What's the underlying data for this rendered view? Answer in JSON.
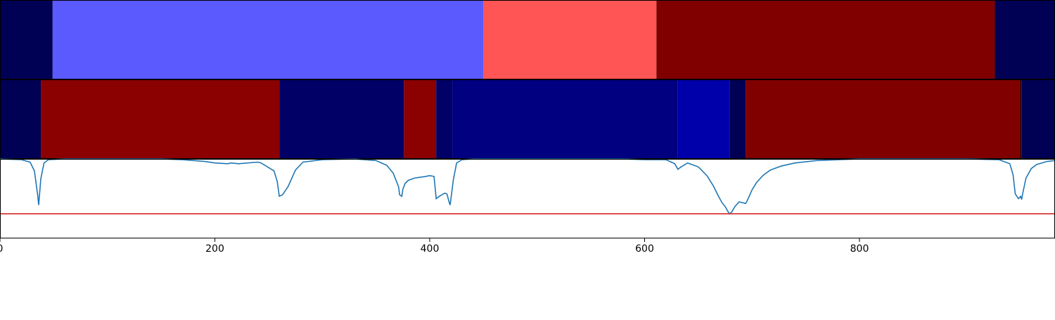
{
  "chart_data": [
    {
      "type": "heatmap",
      "xlim": [
        0,
        982
      ],
      "segments": [
        {
          "start": 0,
          "end": 49,
          "color": "#000055"
        },
        {
          "start": 49,
          "end": 450,
          "color": "#5a5aff"
        },
        {
          "start": 450,
          "end": 611,
          "color": "#ff5555"
        },
        {
          "start": 611,
          "end": 926,
          "color": "#800000"
        },
        {
          "start": 926,
          "end": 982,
          "color": "#000055"
        }
      ]
    },
    {
      "type": "heatmap",
      "xlim": [
        0,
        982
      ],
      "segments": [
        {
          "start": 0,
          "end": 38,
          "color": "#000055"
        },
        {
          "start": 38,
          "end": 260,
          "color": "#8b0000"
        },
        {
          "start": 260,
          "end": 376,
          "color": "#000066"
        },
        {
          "start": 376,
          "end": 406,
          "color": "#8b0000"
        },
        {
          "start": 406,
          "end": 421,
          "color": "#000066"
        },
        {
          "start": 421,
          "end": 631,
          "color": "#000080"
        },
        {
          "start": 631,
          "end": 679,
          "color": "#0000aa"
        },
        {
          "start": 679,
          "end": 694,
          "color": "#000055"
        },
        {
          "start": 694,
          "end": 949,
          "color": "#800000"
        },
        {
          "start": 949,
          "end": 951,
          "color": "#3a0000"
        },
        {
          "start": 951,
          "end": 982,
          "color": "#000055"
        }
      ]
    },
    {
      "type": "line",
      "xlim": [
        0,
        982
      ],
      "ylim": [
        0,
        1
      ],
      "xticks": [
        0,
        200,
        400,
        600,
        800
      ],
      "xtick_labels": [
        "0",
        "200",
        "400",
        "600",
        "800"
      ],
      "threshold": {
        "value": 0.31,
        "color": "#d62728"
      },
      "series": [
        {
          "color": "#1f77b4",
          "x": [
            0,
            20,
            28,
            32,
            35,
            36,
            38,
            41,
            45,
            60,
            100,
            150,
            170,
            180,
            190,
            200,
            212,
            215,
            222,
            240,
            243,
            255,
            258,
            260,
            263,
            268,
            275,
            282,
            300,
            330,
            350,
            360,
            366,
            371,
            372,
            374,
            375,
            377,
            380,
            386,
            396,
            400,
            404,
            406,
            409,
            414,
            416,
            418,
            419,
            422,
            425,
            430,
            440,
            460,
            500,
            550,
            580,
            600,
            620,
            628,
            631,
            634,
            640,
            650,
            658,
            664,
            668,
            672,
            675,
            678,
            679,
            681,
            684,
            688,
            694,
            695,
            697,
            700,
            704,
            710,
            717,
            727,
            740,
            760,
            800,
            850,
            900,
            930,
            940,
            943,
            945,
            948,
            950,
            951,
            952,
            955,
            960,
            965,
            975,
            982
          ],
          "y": [
            1,
            0.99,
            0.96,
            0.85,
            0.55,
            0.42,
            0.75,
            0.95,
            0.99,
            1,
            1,
            1,
            0.99,
            0.98,
            0.97,
            0.95,
            0.94,
            0.95,
            0.94,
            0.96,
            0.95,
            0.85,
            0.72,
            0.53,
            0.55,
            0.65,
            0.86,
            0.96,
            0.99,
            1,
            0.98,
            0.92,
            0.82,
            0.65,
            0.55,
            0.53,
            0.62,
            0.69,
            0.73,
            0.76,
            0.78,
            0.79,
            0.78,
            0.5,
            0.53,
            0.57,
            0.56,
            0.46,
            0.42,
            0.74,
            0.95,
            0.99,
            1,
            1,
            1,
            1,
            1,
            0.99,
            0.99,
            0.94,
            0.87,
            0.9,
            0.95,
            0.9,
            0.79,
            0.66,
            0.55,
            0.45,
            0.4,
            0.33,
            0.31,
            0.33,
            0.4,
            0.46,
            0.44,
            0.46,
            0.52,
            0.61,
            0.7,
            0.79,
            0.86,
            0.91,
            0.95,
            0.98,
            1,
            1,
            1,
            0.99,
            0.94,
            0.8,
            0.56,
            0.5,
            0.53,
            0.49,
            0.57,
            0.76,
            0.88,
            0.93,
            0.97,
            0.98
          ]
        }
      ]
    }
  ]
}
